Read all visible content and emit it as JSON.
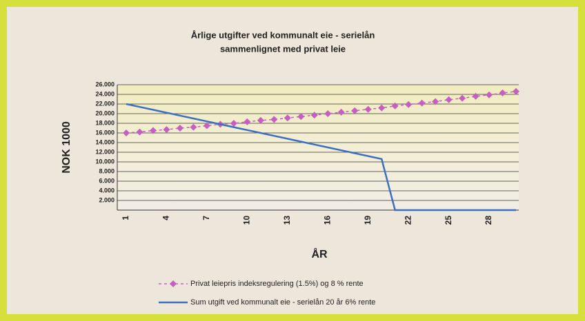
{
  "chart_data": {
    "type": "line",
    "title": [
      "Årlige utgifter ved kommunalt eie - serielån",
      "sammenlignet med privat leie"
    ],
    "ylabel": "NOK 1000",
    "xlabel": "ÅR",
    "categories": [
      "1",
      null,
      null,
      "4",
      null,
      null,
      "7",
      null,
      null,
      "10",
      null,
      null,
      "13",
      null,
      null,
      "16",
      null,
      null,
      "19",
      null,
      null,
      "22",
      null,
      null,
      "25",
      null,
      null,
      "28",
      null,
      null
    ],
    "series": [
      {
        "name": "Privat leiepris indeksregulering (1.5%) og 8 % rente",
        "color": "#c65fc0",
        "marker": "diamond",
        "dashed": true,
        "values": [
          16000,
          16200,
          16500,
          16700,
          17000,
          17200,
          17500,
          17800,
          18000,
          18300,
          18600,
          18800,
          19100,
          19400,
          19700,
          20000,
          20300,
          20600,
          20900,
          21200,
          21600,
          21900,
          22200,
          22500,
          22900,
          23200,
          23600,
          23900,
          24300,
          24600
        ]
      },
      {
        "name": "Sum utgift ved kommunalt eie - serielån 20 år 6% rente",
        "color": "#3a6fc4",
        "marker": "none",
        "dashed": false,
        "values": [
          22000,
          21400,
          20800,
          20200,
          19600,
          19000,
          18400,
          17800,
          17200,
          16600,
          16000,
          15400,
          14800,
          14200,
          13600,
          13000,
          12400,
          11800,
          11200,
          10600,
          0,
          0,
          0,
          0,
          0,
          0,
          0,
          0,
          0,
          0
        ]
      }
    ],
    "ylim": [
      0,
      26000
    ],
    "yticks": [
      {
        "value": 2000,
        "label": "2.000"
      },
      {
        "value": 4000,
        "label": "4.000"
      },
      {
        "value": 6000,
        "label": "6.000"
      },
      {
        "value": 8000,
        "label": "8.000"
      },
      {
        "value": 10000,
        "label": "10.000"
      },
      {
        "value": 12000,
        "label": "12.000"
      },
      {
        "value": 14000,
        "label": "14.000"
      },
      {
        "value": 16000,
        "label": "16.000"
      },
      {
        "value": 18000,
        "label": "18.000"
      },
      {
        "value": 20000,
        "label": "20.000"
      },
      {
        "value": 22000,
        "label": "22.000"
      },
      {
        "value": 24000,
        "label": "24.000"
      },
      {
        "value": 26000,
        "label": "26.000"
      }
    ],
    "grid": true
  }
}
